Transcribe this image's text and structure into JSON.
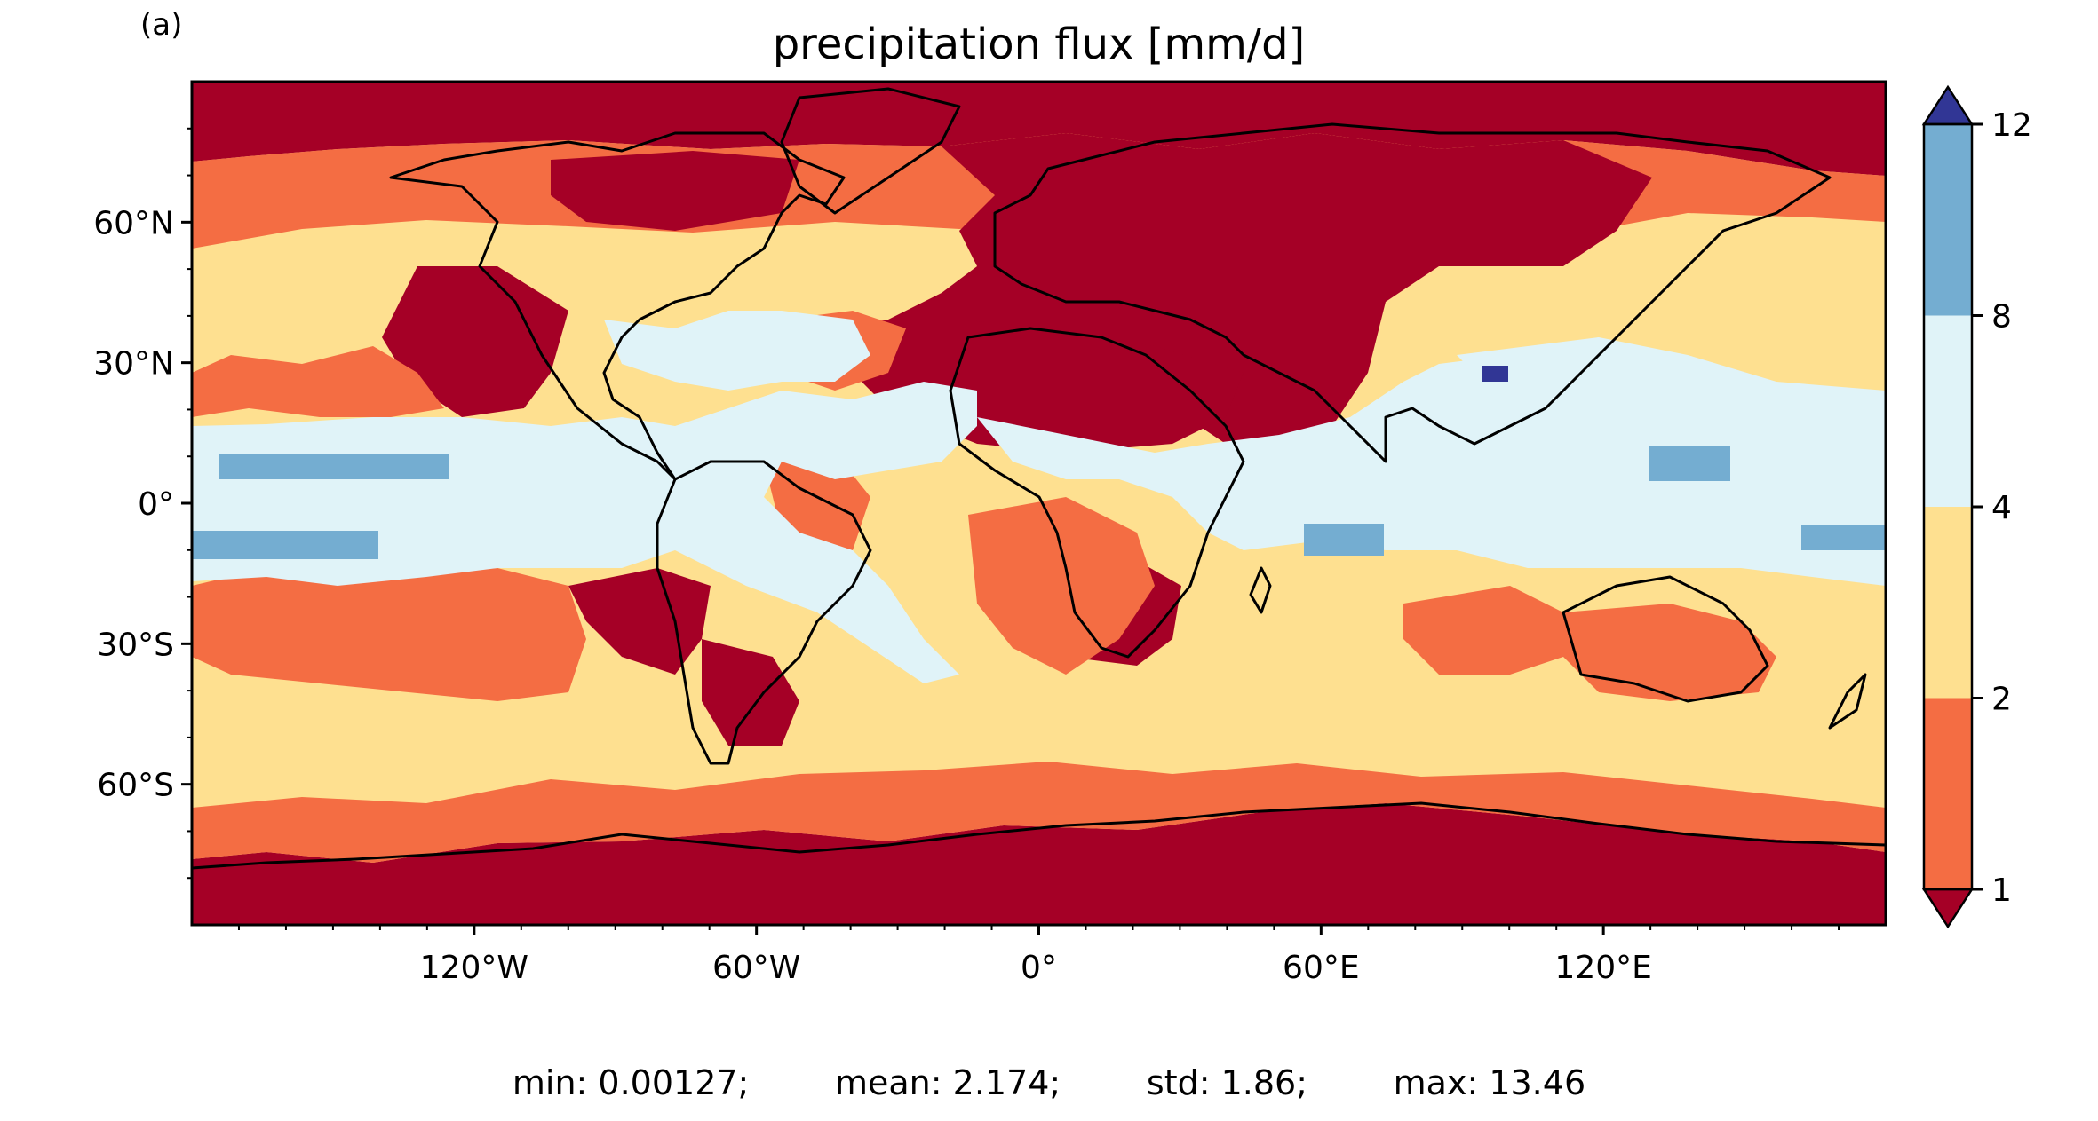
{
  "panel_label": "(a)",
  "title": "precipitation flux [mm/d]",
  "stats": {
    "min": "min: 0.00127;",
    "mean": "mean: 2.174;",
    "std": "std: 1.86;",
    "max": "max: 13.46"
  },
  "map": {
    "projection": "PlateCarree",
    "extent": {
      "lon": [
        -180,
        180
      ],
      "lat": [
        -90,
        90
      ]
    },
    "lat_ticks": [
      "60°N",
      "30°N",
      "0°",
      "30°S",
      "60°S"
    ],
    "lon_ticks": [
      "120°W",
      "60°W",
      "0°",
      "60°E",
      "120°E"
    ],
    "colors": {
      "lt1": "#a50026",
      "1-2": "#f46d43",
      "2-4": "#fee090",
      "4-8": "#e0f3f8",
      "8-12": "#74add1",
      "gt12": "#313695",
      "coast": "#000000"
    }
  },
  "colorbar": {
    "levels": [
      "1",
      "2",
      "4",
      "8",
      "12"
    ],
    "colors": [
      "#a50026",
      "#f46d43",
      "#fee090",
      "#e0f3f8",
      "#74add1",
      "#313695"
    ],
    "extend": "both"
  }
}
